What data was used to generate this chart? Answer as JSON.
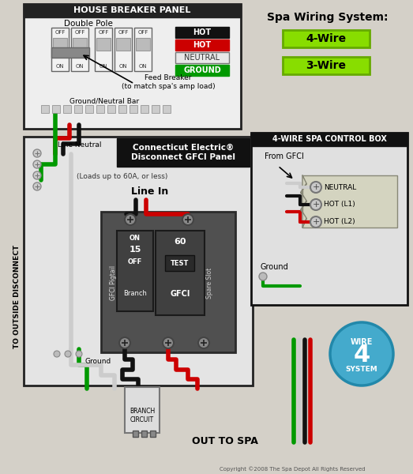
{
  "bg_color": "#d4d0c8",
  "copyright": "Copyright ©2008 The Spa Depot All Rights Reserved",
  "spa_wiring_title": "Spa Wiring System:",
  "wire_4_label": "4-Wire",
  "wire_3_label": "3-Wire",
  "house_panel_title": "HOUSE BREAKER PANEL",
  "double_pole_label": "Double Pole",
  "feed_breaker_label": "Feed Breaker\n(to match spa's amp load)",
  "ground_neutral_bar": "Ground/Neutral Bar",
  "connecticut_title": "Connecticut Electric®\nDisconnect GFCI Panel",
  "loads_label": "(Loads up to 60A, or less)",
  "line_in_label": "Line In",
  "line_neutral_label": "Line Neutral",
  "gfci_pigtail_label": "GFCI Pigtail",
  "branch_label": "Branch",
  "gfci_label": "GFCI",
  "test_label": "TEST",
  "spare_slot_label": "Spare Slot",
  "ground_label": "Ground",
  "branch_circuit_label": "BRANCH\nCIRCUIT",
  "out_to_spa_label": "OUT TO SPA",
  "to_outside_label": "TO OUTSIDE DISCONNECT",
  "control_box_title": "4-WIRE SPA CONTROL BOX",
  "from_gfci_label": "From GFCI",
  "ground_label2": "Ground",
  "neutral_label": "NEUTRAL",
  "hot_l1_label": "HOT (L1)",
  "hot_l2_label": "HOT (L2)",
  "legend_hot_black": "HOT",
  "legend_hot_red": "HOT",
  "legend_neutral": "NEUTRAL",
  "legend_ground": "GROUND",
  "green_btn_color": "#88dd00",
  "green_dark_color": "#66aa00",
  "wire_black": "#111111",
  "wire_red": "#cc0000",
  "wire_green": "#009900",
  "wire_white": "#cccccc",
  "panel_bg": "#e8e8e8"
}
